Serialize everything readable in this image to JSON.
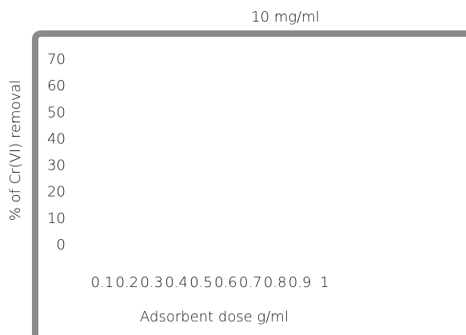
{
  "chart_data": {
    "type": "line",
    "title": "10 mg/ml",
    "xlabel": "Adsorbent dose g/ml",
    "ylabel": "% of Cr(VI) removal",
    "xlim": [
      0.1,
      1
    ],
    "xticks": [
      0.1,
      0.2,
      0.3,
      0.4,
      0.5,
      0.6,
      0.7,
      0.8,
      0.9,
      1
    ],
    "ylim": [
      0,
      70
    ],
    "yticks": [
      0,
      10,
      20,
      30,
      40,
      50,
      60,
      70
    ]
  }
}
